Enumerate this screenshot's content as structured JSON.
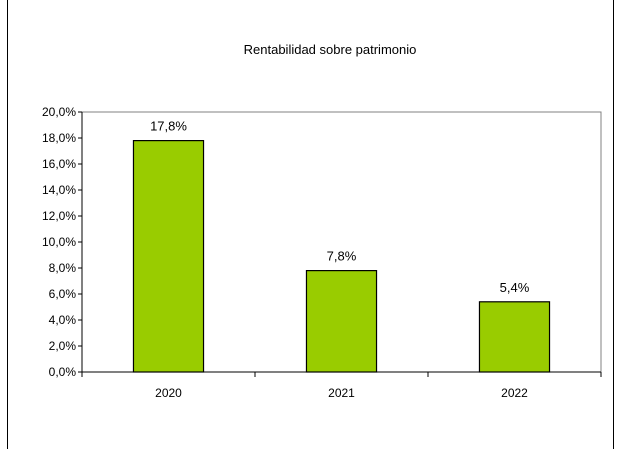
{
  "chart_data": {
    "type": "bar",
    "title": "Rentabilidad sobre patrimonio",
    "xlabel": "",
    "ylabel": "",
    "categories": [
      "2020",
      "2021",
      "2022"
    ],
    "values": [
      17.8,
      7.8,
      5.4
    ],
    "value_labels": [
      "17,8%",
      "7,8%",
      "5,4%"
    ],
    "ylim": [
      0,
      20
    ],
    "yticks": [
      0,
      2,
      4,
      6,
      8,
      10,
      12,
      14,
      16,
      18,
      20
    ],
    "ytick_labels": [
      "0,0%",
      "2,0%",
      "4,0%",
      "6,0%",
      "8,0%",
      "10,0%",
      "12,0%",
      "14,0%",
      "16,0%",
      "18,0%",
      "20,0%"
    ],
    "grid": false,
    "legend": "none",
    "bar_color": "#99cc00",
    "plot_border_color": "#808080"
  }
}
